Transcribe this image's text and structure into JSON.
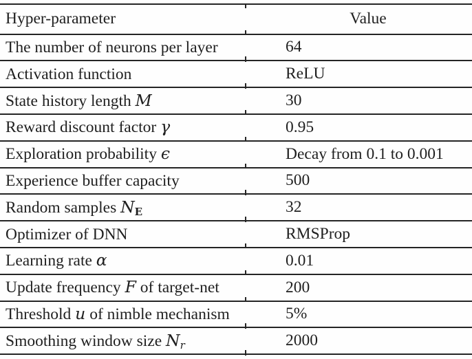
{
  "colors": {
    "ink": "#1f1f1f",
    "rule": "#242424",
    "background": "#fefefe"
  },
  "table": {
    "header": {
      "param": "Hyper-parameter",
      "value": "Value"
    },
    "rows": [
      {
        "pre": "The number of neurons per layer",
        "math": "",
        "subb": "",
        "subi": "",
        "post": "",
        "value": "64"
      },
      {
        "pre": "Activation function",
        "math": "",
        "subb": "",
        "subi": "",
        "post": "",
        "value": "ReLU"
      },
      {
        "pre": "State history length ",
        "math": "M",
        "subb": "",
        "subi": "",
        "post": "",
        "value": "30"
      },
      {
        "pre": "Reward discount factor ",
        "math": "γ",
        "subb": "",
        "subi": "",
        "post": "",
        "value": "0.95"
      },
      {
        "pre": "Exploration probability ",
        "math": "ϵ",
        "subb": "",
        "subi": "",
        "post": "",
        "value": "Decay from 0.1 to 0.001"
      },
      {
        "pre": "Experience buffer capacity",
        "math": "",
        "subb": "",
        "subi": "",
        "post": "",
        "value": "500"
      },
      {
        "pre": "Random samples ",
        "math": "N",
        "subb": "E",
        "subi": "",
        "post": "",
        "value": "32"
      },
      {
        "pre": "Optimizer of DNN",
        "math": "",
        "subb": "",
        "subi": "",
        "post": "",
        "value": "RMSProp"
      },
      {
        "pre": "Learning rate ",
        "math": "α",
        "subb": "",
        "subi": "",
        "post": "",
        "value": "0.01"
      },
      {
        "pre": "Update frequency ",
        "math": "F",
        "subb": "",
        "subi": "",
        "post": " of target-net",
        "value": "200"
      },
      {
        "pre": "Threshold ",
        "math": "u",
        "subb": "",
        "subi": "",
        "post": " of nimble mechanism",
        "value": "5%"
      },
      {
        "pre": "Smoothing window size ",
        "math": "N",
        "subb": "",
        "subi": "r",
        "post": "",
        "value": "2000"
      }
    ]
  }
}
